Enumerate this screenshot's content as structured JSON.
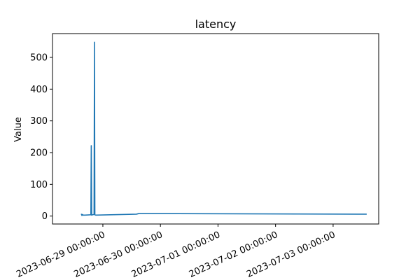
{
  "chart_data": {
    "type": "line",
    "title": "latency",
    "xlabel": "",
    "ylabel": "Value",
    "xlim": [
      "2023-06-28T03:00:00",
      "2023-07-03T19:00:00"
    ],
    "ylim": [
      -25,
      575
    ],
    "grid": false,
    "y_ticks": [
      0,
      100,
      200,
      300,
      400,
      500
    ],
    "x_ticks": [
      "2023-06-29 00:00:00",
      "2023-06-30 00:00:00",
      "2023-07-01 00:00:00",
      "2023-07-02 00:00:00",
      "2023-07-03 00:00:00"
    ],
    "series_color": "#1f77b4",
    "series": [
      {
        "x": [
          "2023-06-28T15:00:00",
          "2023-06-28T15:15:00",
          "2023-06-28T15:30:00",
          "2023-06-28T15:45:00",
          "2023-06-28T16:30:00",
          "2023-06-28T19:00:00",
          "2023-06-28T19:10:00",
          "2023-06-28T19:20:00",
          "2023-06-28T19:40:00",
          "2023-06-28T20:20:00",
          "2023-06-28T20:30:00",
          "2023-06-28T20:40:00",
          "2023-06-28T21:00:00",
          "2023-06-29T14:00:00",
          "2023-06-29T15:00:00",
          "2023-06-29T15:30:00",
          "2023-07-03T14:00:00"
        ],
        "y": [
          7,
          2,
          5,
          3,
          3,
          4,
          222,
          3,
          4,
          5,
          548,
          4,
          3,
          6,
          8,
          8,
          6
        ]
      }
    ]
  }
}
